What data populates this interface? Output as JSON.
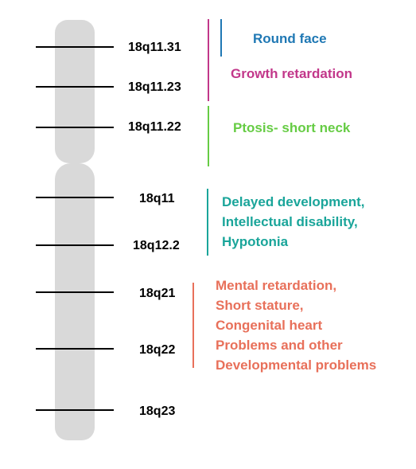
{
  "colors": {
    "chromosome": "#d9d9d9",
    "blue": "#1f78b4",
    "magenta": "#c2378a",
    "green": "#66cc44",
    "teal": "#1aa59a",
    "orange": "#e8705a"
  },
  "bands": [
    {
      "label": "18q11.31"
    },
    {
      "label": "18q11.23"
    },
    {
      "label": "18q11.22"
    },
    {
      "label": "18q11"
    },
    {
      "label": "18q12.2"
    },
    {
      "label": "18q21"
    },
    {
      "label": "18q22"
    },
    {
      "label": "18q23"
    }
  ],
  "phenotypes": {
    "round_face": "Round face",
    "growth_retardation": "Growth retardation",
    "ptosis": "Ptosis- short neck",
    "delayed": [
      "Delayed development,",
      "Intellectual disability,",
      "Hypotonia"
    ],
    "mental": [
      "Mental retardation,",
      "Short stature,",
      "Congenital heart",
      "Problems and other",
      "Developmental problems"
    ]
  }
}
